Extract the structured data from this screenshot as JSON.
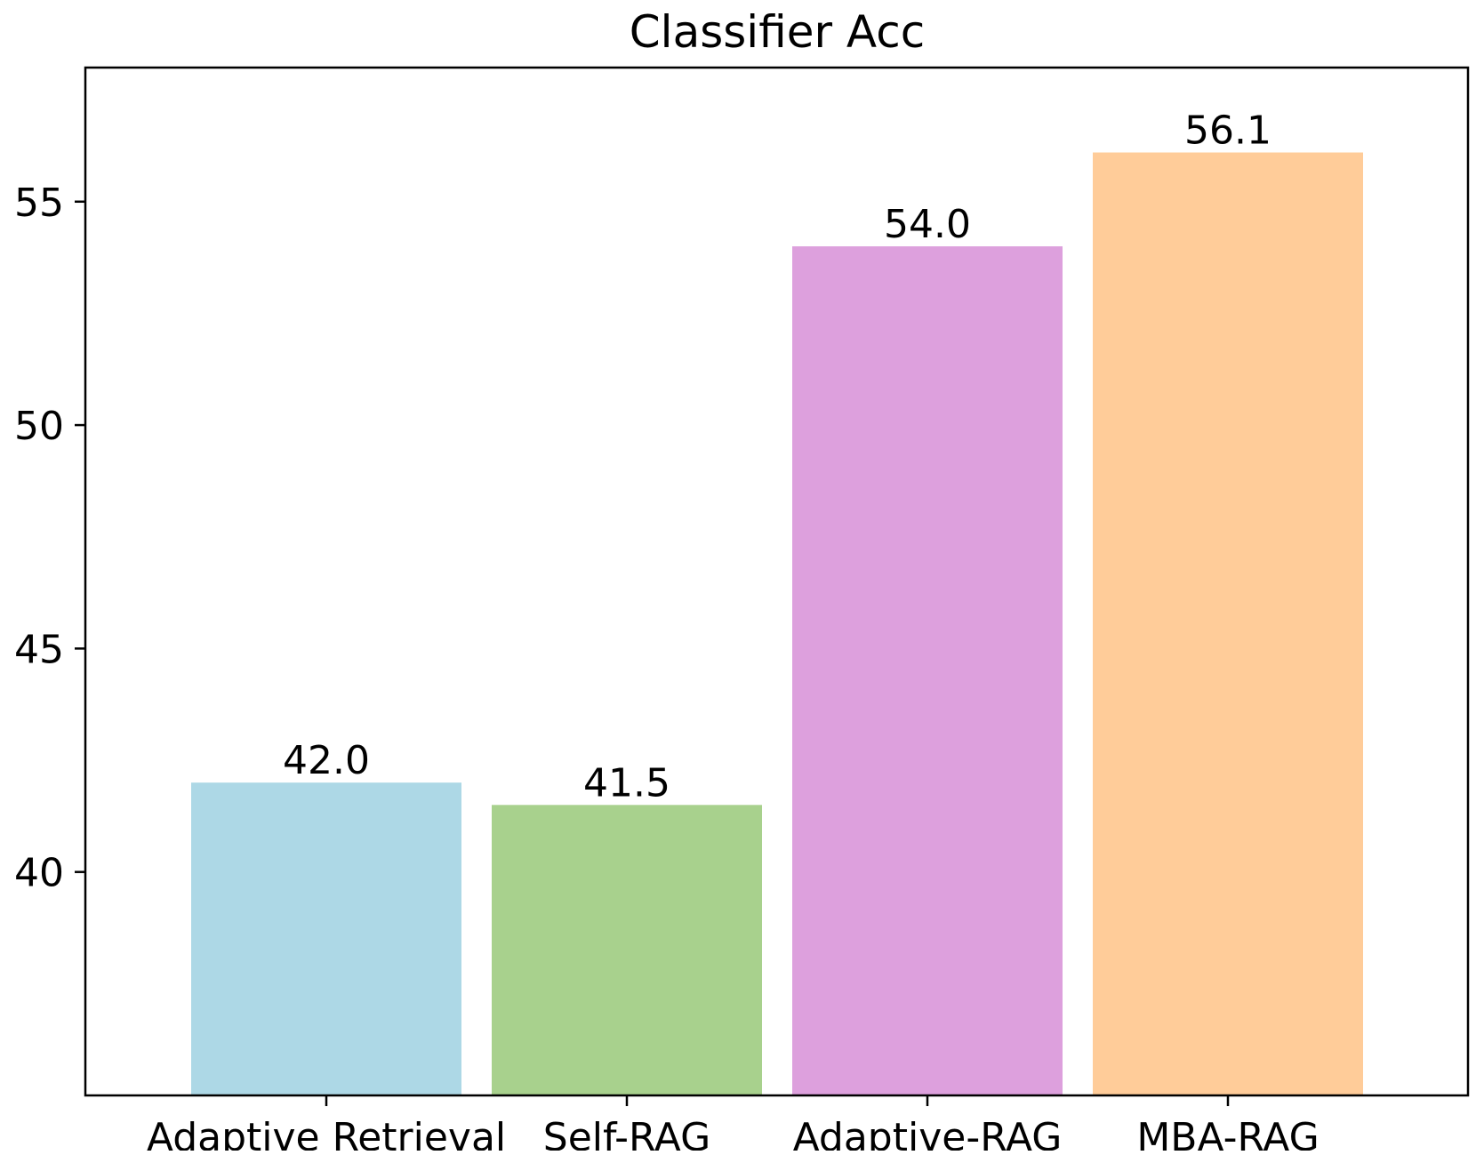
{
  "chart_data": {
    "type": "bar",
    "title": "Classifier Acc",
    "xlabel": "",
    "ylabel": "",
    "categories": [
      "Adaptive Retrieval",
      "Self-RAG",
      "Adaptive-RAG",
      "MBA-RAG"
    ],
    "values": [
      42.0,
      41.5,
      54.0,
      56.1
    ],
    "value_labels": [
      "42.0",
      "41.5",
      "54.0",
      "56.1"
    ],
    "colors": [
      "#add8e6",
      "#a8d18d",
      "#dda0dd",
      "#ffcc99"
    ],
    "ylim": [
      35,
      58
    ],
    "yticks": [
      40,
      45,
      50,
      55
    ],
    "ytick_labels": [
      "40",
      "45",
      "50",
      "55"
    ],
    "grid": false,
    "legend": "none"
  }
}
